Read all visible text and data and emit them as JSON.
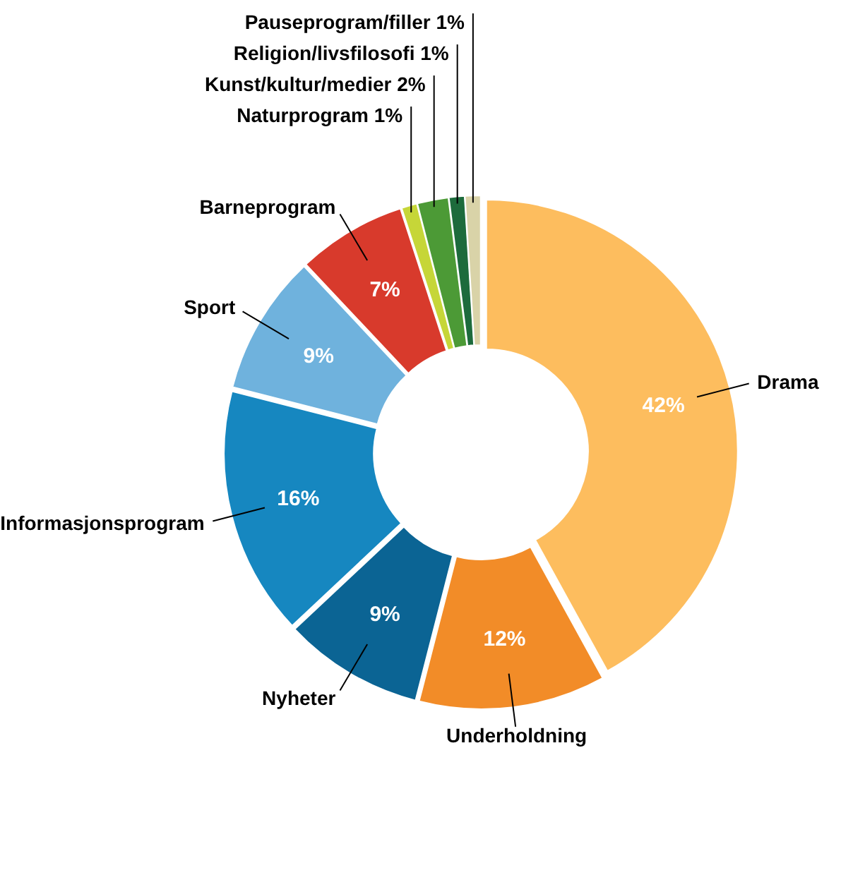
{
  "chart_data": {
    "type": "donut",
    "categories": [
      "Drama",
      "Underholdning",
      "Nyheter",
      "Informasjonsprogram",
      "Sport",
      "Barneprogram",
      "Naturprogram",
      "Kunst/kultur/medier",
      "Religion/livsfilosofi",
      "Pauseprogram/filler"
    ],
    "values": [
      42,
      12,
      9,
      16,
      9,
      7,
      1,
      2,
      1,
      1
    ],
    "value_labels": [
      "42%",
      "12%",
      "9%",
      "16%",
      "9%",
      "7%",
      "1%",
      "2%",
      "1%",
      "1%"
    ],
    "colors": [
      "#fdbd5e",
      "#f28c28",
      "#0b6494",
      "#1687c0",
      "#6fb2dd",
      "#d83a2c",
      "#c6d638",
      "#4c9a36",
      "#1d6b3c",
      "#d9d3a8"
    ]
  }
}
